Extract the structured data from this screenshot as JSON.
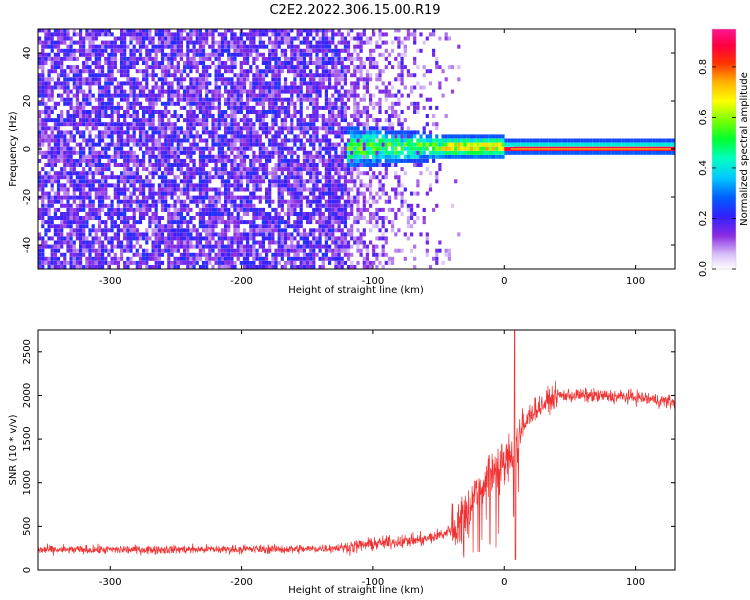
{
  "title": "C2E2.2022.306.15.00.R19",
  "chart_data": [
    {
      "type": "heatmap",
      "name": "spectrogram",
      "xlabel": "Height of straight line (km)",
      "ylabel": "Frequency (Hz)",
      "xlim": [
        -355,
        130
      ],
      "ylim": [
        -50,
        50
      ],
      "xticks": [
        -300,
        -200,
        -100,
        0,
        100
      ],
      "xtick_labels": [
        "-300",
        "-200",
        "-100",
        "0",
        "100"
      ],
      "yticks": [
        -40,
        -20,
        0,
        20,
        40
      ],
      "ytick_labels": [
        "-40",
        "-20",
        "0",
        "20",
        "40"
      ],
      "regions": [
        {
          "x": [
            -355,
            -120
          ],
          "description": "broadband noise, amplitude ~0.1-0.2"
        },
        {
          "x": [
            -120,
            -50
          ],
          "description": "fading noise with signal emerging near 0 Hz"
        },
        {
          "x": [
            -50,
            130
          ],
          "description": "narrow carrier line at 0 Hz, amplitude ~0.9"
        }
      ],
      "colorbar": {
        "label": "Normalized spectral amplitude",
        "range": [
          0,
          0.95
        ],
        "ticks": [
          0.0,
          0.2,
          0.4,
          0.6,
          0.8
        ],
        "tick_labels": [
          "0.0",
          "0.2",
          "0.4",
          "0.6",
          "0.8"
        ]
      }
    },
    {
      "type": "line",
      "name": "snr",
      "xlabel": "Height of straight line (km)",
      "ylabel": "SNR (10 * v/v)",
      "xlim": [
        -355,
        130
      ],
      "ylim": [
        0,
        2750
      ],
      "xticks": [
        -300,
        -200,
        -100,
        0,
        100
      ],
      "xtick_labels": [
        "-300",
        "-200",
        "-100",
        "0",
        "100"
      ],
      "yticks": [
        0,
        500,
        1000,
        1500,
        2000,
        2500
      ],
      "ytick_labels": [
        "0",
        "500",
        "1000",
        "1500",
        "2000",
        "2500"
      ],
      "color": "#f03232",
      "series_profile": {
        "x": [
          -355,
          -150,
          -120,
          -100,
          -60,
          -45,
          -35,
          -20,
          -10,
          0,
          8,
          20,
          40,
          60,
          100,
          130
        ],
        "y": [
          230,
          240,
          260,
          300,
          350,
          420,
          550,
          900,
          1150,
          1200,
          1400,
          1800,
          2000,
          2000,
          1980,
          1920
        ]
      },
      "spike": {
        "x": 8,
        "y": 2750
      }
    }
  ]
}
